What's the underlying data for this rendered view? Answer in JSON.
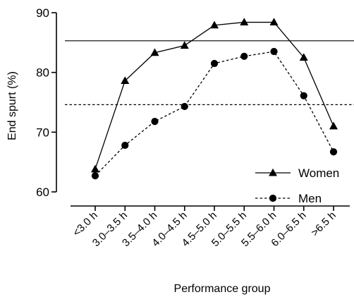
{
  "chart_data": {
    "type": "line",
    "xlabel": "Performance group",
    "ylabel": "End spurt (%)",
    "ylim": [
      60,
      90
    ],
    "yticks": [
      60,
      70,
      80,
      90
    ],
    "categories": [
      "<3.0 h",
      "3.0–3.5 h",
      "3.5–4.0 h",
      "4.0–4.5 h",
      "4.5–5.0 h",
      "5.0–5.5 h",
      "5.5–6.0 h",
      "6.0–6.5 h",
      ">6.5 h"
    ],
    "series": [
      {
        "name": "Women",
        "marker": "triangle",
        "line_style": "solid",
        "values": [
          63.8,
          78.6,
          83.3,
          84.5,
          87.9,
          88.4,
          88.4,
          82.5,
          71.0
        ]
      },
      {
        "name": "Men",
        "marker": "circle",
        "line_style": "dashed",
        "values": [
          62.7,
          67.8,
          71.8,
          74.3,
          81.5,
          82.7,
          83.5,
          76.1,
          66.7
        ]
      }
    ],
    "reference_lines": [
      {
        "series": "Women",
        "y": 85.3,
        "line_style": "solid"
      },
      {
        "series": "Men",
        "y": 74.6,
        "line_style": "dashed"
      }
    ],
    "legend": "bottom-right",
    "grid": false
  }
}
